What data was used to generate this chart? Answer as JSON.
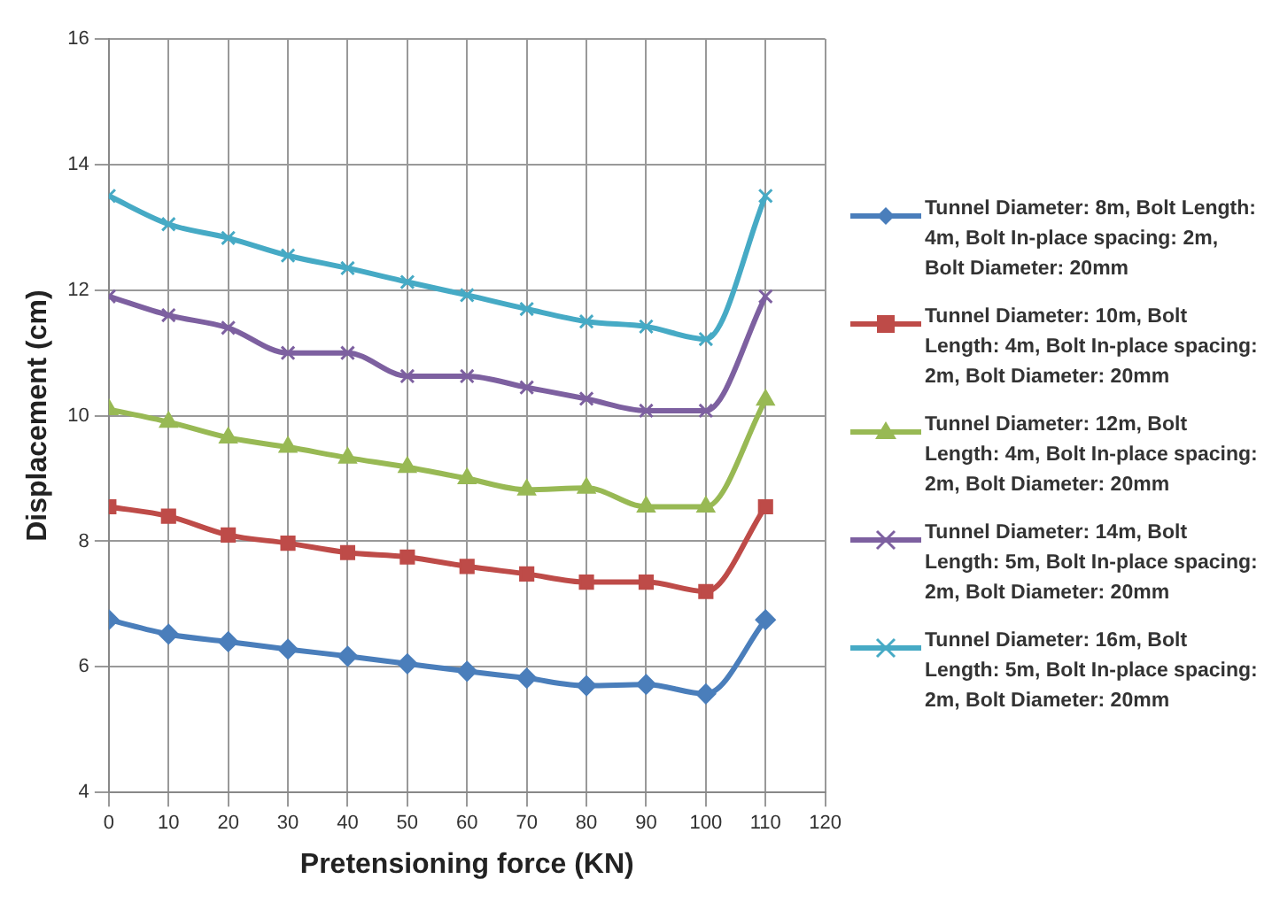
{
  "chart_data": {
    "type": "line",
    "xlabel": "Pretensioning force (KN)",
    "ylabel": "Displacement (cm)",
    "x": [
      0,
      10,
      20,
      30,
      40,
      50,
      60,
      70,
      80,
      90,
      100,
      110
    ],
    "xlim": [
      0,
      120
    ],
    "xticks": [
      0,
      10,
      20,
      30,
      40,
      50,
      60,
      70,
      80,
      90,
      100,
      110,
      120
    ],
    "ylim": [
      4,
      16
    ],
    "yticks": [
      4,
      6,
      8,
      10,
      12,
      14,
      16
    ],
    "grid": true,
    "legend": "right",
    "series": [
      {
        "name": "Tunnel Diameter: 8m, Bolt Length: 4m, Bolt In-place spacing: 2m, Bolt Diameter: 20mm",
        "color": "#4a7ebb",
        "marker": "diamond",
        "values": [
          6.75,
          6.52,
          6.4,
          6.28,
          6.17,
          6.05,
          5.93,
          5.82,
          5.7,
          5.72,
          5.57,
          6.75
        ]
      },
      {
        "name": "Tunnel Diameter: 10m, Bolt Length: 4m, Bolt In-place spacing: 2m, Bolt Diameter: 20mm",
        "color": "#be4b48",
        "marker": "square",
        "values": [
          8.55,
          8.4,
          8.1,
          7.97,
          7.82,
          7.75,
          7.6,
          7.48,
          7.35,
          7.35,
          7.2,
          8.55
        ]
      },
      {
        "name": "Tunnel Diameter: 12m, Bolt Length: 4m, Bolt In-place spacing: 2m, Bolt Diameter: 20mm",
        "color": "#98b954",
        "marker": "triangle",
        "values": [
          10.1,
          9.9,
          9.65,
          9.5,
          9.33,
          9.18,
          9.0,
          8.82,
          8.85,
          8.55,
          8.55,
          10.25
        ]
      },
      {
        "name": "Tunnel Diameter: 14m, Bolt Length: 5m, Bolt In-place spacing: 2m, Bolt Diameter: 20mm",
        "color": "#7d60a0",
        "marker": "cross",
        "values": [
          11.9,
          11.6,
          11.4,
          11.0,
          11.0,
          10.63,
          10.63,
          10.45,
          10.27,
          10.08,
          10.08,
          11.9
        ]
      },
      {
        "name": "Tunnel Diameter: 16m, Bolt Length: 5m, Bolt In-place spacing: 2m, Bolt Diameter: 20mm",
        "color": "#46aac5",
        "marker": "cross",
        "values": [
          13.5,
          13.05,
          12.83,
          12.55,
          12.35,
          12.13,
          11.92,
          11.7,
          11.5,
          11.42,
          11.22,
          13.5
        ]
      }
    ]
  }
}
